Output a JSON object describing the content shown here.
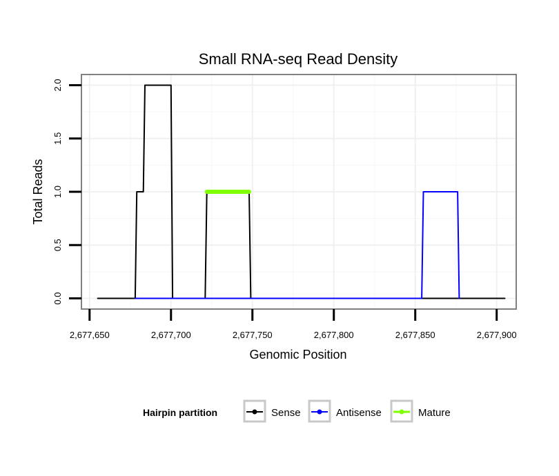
{
  "chart_data": {
    "type": "line",
    "title": "Small RNA-seq Read Density",
    "xlabel": "Genomic Position",
    "ylabel": "Total Reads",
    "xlim": [
      2677645,
      2677912
    ],
    "ylim": [
      -0.1,
      2.1
    ],
    "x_ticks": [
      2677650,
      2677700,
      2677750,
      2677800,
      2677850,
      2677900
    ],
    "x_tick_labels": [
      "2,677,650",
      "2,677,700",
      "2,677,750",
      "2,677,800",
      "2,677,850",
      "2,677,900"
    ],
    "y_ticks": [
      0,
      0.5,
      1,
      1.5,
      2
    ],
    "y_tick_labels": [
      "0.0",
      "0.5",
      "1.0",
      "1.5",
      "2.0"
    ],
    "grid": true,
    "legend_title": "Hairpin partition",
    "legend_position": "bottom",
    "series": [
      {
        "name": "Sense",
        "color": "#000000",
        "width": "thin",
        "x": [
          2677655,
          2677678,
          2677679,
          2677681,
          2677682,
          2677683,
          2677684,
          2677685,
          2677699,
          2677700,
          2677701,
          2677721,
          2677722,
          2677748,
          2677749,
          2677905
        ],
        "y": [
          0,
          0,
          1,
          1,
          1,
          1,
          2,
          2,
          2,
          2,
          0,
          0,
          1,
          1,
          0,
          0
        ]
      },
      {
        "name": "Antisense",
        "color": "#0000ff",
        "width": "thin",
        "x": [
          2677678,
          2677854,
          2677855,
          2677876,
          2677877
        ],
        "y": [
          0,
          0,
          1,
          1,
          0
        ]
      },
      {
        "name": "Mature",
        "color": "#7fff00",
        "width": "thick",
        "x": [
          2677722,
          2677748
        ],
        "y": [
          1,
          1
        ]
      }
    ]
  }
}
